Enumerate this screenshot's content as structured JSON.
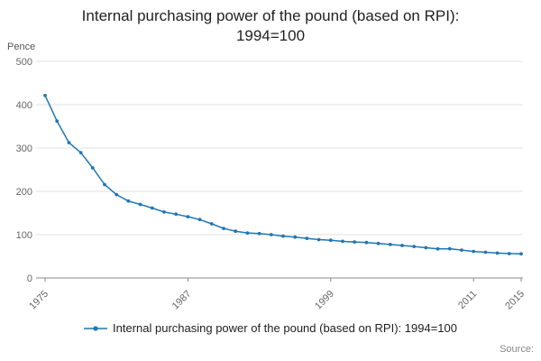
{
  "title_line1": "Internal purchasing power of the pound (based on RPI):",
  "title_line2": "1994=100",
  "unit_label": "Pence",
  "source_label": "Source:",
  "legend": {
    "label": "Internal purchasing power of the pound (based on RPI): 1994=100"
  },
  "colors": {
    "accent": "#1f77b4",
    "grid": "#e0e0e0",
    "axis": "#888888",
    "tick_text": "#666666"
  },
  "chart_data": {
    "type": "line",
    "title": "Internal purchasing power of the pound (based on RPI): 1994=100",
    "xlabel": "",
    "ylabel": "Pence",
    "ylim": [
      0,
      500
    ],
    "yticks": [
      0,
      100,
      200,
      300,
      400,
      500
    ],
    "xticks": [
      1975,
      1987,
      1999,
      2011,
      2015
    ],
    "grid": true,
    "legend_position": "bottom",
    "x": [
      1975,
      1976,
      1977,
      1978,
      1979,
      1980,
      1981,
      1982,
      1983,
      1984,
      1985,
      1986,
      1987,
      1988,
      1989,
      1990,
      1991,
      1992,
      1993,
      1994,
      1995,
      1996,
      1997,
      1998,
      1999,
      2000,
      2001,
      2002,
      2003,
      2004,
      2005,
      2006,
      2007,
      2008,
      2009,
      2010,
      2011,
      2012,
      2013,
      2014,
      2015
    ],
    "series": [
      {
        "name": "Internal purchasing power of the pound (based on RPI): 1994=100",
        "values": [
          421.3,
          362.1,
          312.6,
          289.4,
          254.1,
          215.7,
          192.6,
          177.5,
          169.7,
          161.5,
          152.3,
          147.3,
          141.4,
          134.8,
          125.1,
          114.3,
          107.9,
          104.0,
          102.4,
          100.0,
          96.6,
          94.4,
          91.5,
          88.5,
          87.1,
          84.6,
          83.2,
          81.8,
          79.5,
          77.2,
          75.1,
          72.7,
          69.7,
          67.1,
          67.4,
          64.4,
          61.3,
          59.4,
          57.6,
          56.3,
          55.7
        ]
      }
    ]
  }
}
